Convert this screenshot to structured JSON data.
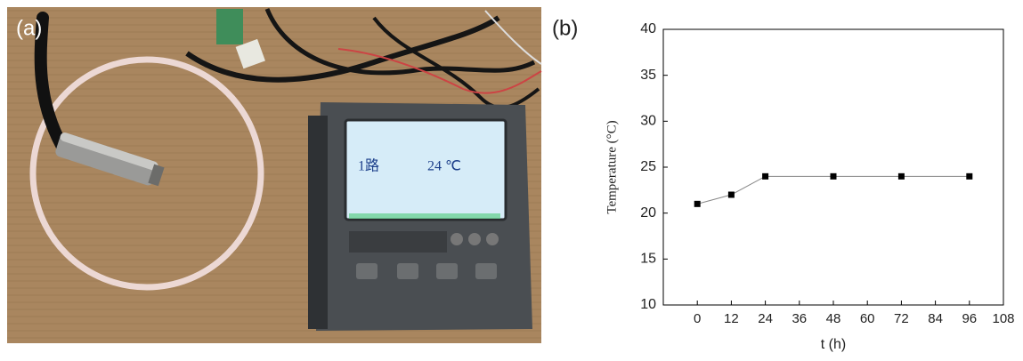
{
  "panel_labels": [
    "(a)",
    "(b)"
  ],
  "photo": {
    "display_channel": "1路",
    "display_reading": "24 ℃"
  },
  "chart_data": {
    "type": "line",
    "x": [
      0,
      12,
      24,
      48,
      72,
      96
    ],
    "values": [
      21,
      22,
      24,
      24,
      24,
      24
    ],
    "color": "#000000",
    "x_label": "t (h)",
    "y_label": "Temperature (°C)",
    "xlim": [
      -12,
      108
    ],
    "xticks": [
      0,
      12,
      24,
      36,
      48,
      60,
      72,
      84,
      96,
      108
    ],
    "ylim": [
      10,
      40
    ],
    "yticks": [
      10,
      15,
      20,
      25,
      30,
      35,
      40
    ]
  }
}
